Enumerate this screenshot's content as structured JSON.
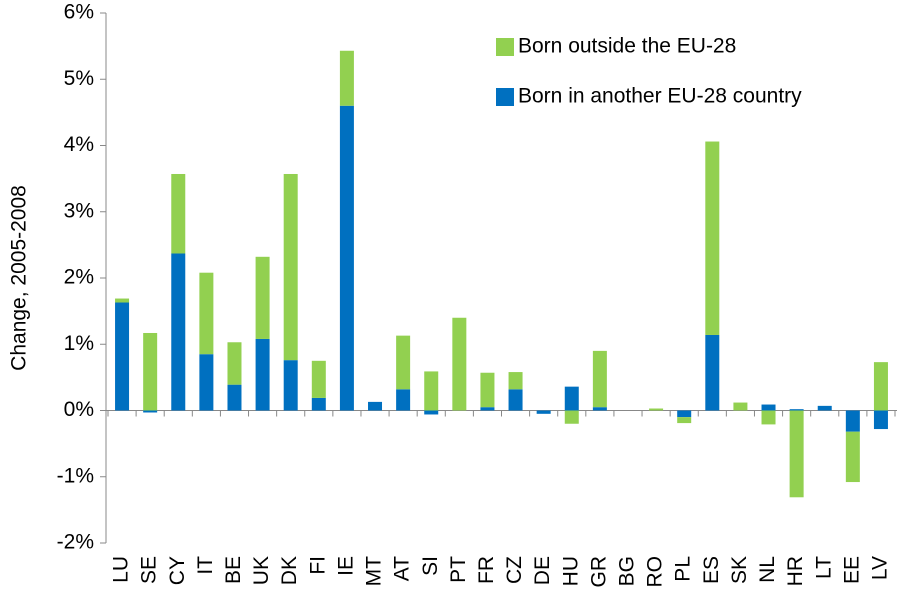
{
  "chart_data": {
    "type": "bar",
    "y_label": "Change, 2005-2008",
    "categories": [
      "LU",
      "SE",
      "CY",
      "IT",
      "BE",
      "UK",
      "DK",
      "FI",
      "IE",
      "MT",
      "AT",
      "SI",
      "PT",
      "FR",
      "CZ",
      "DE",
      "HU",
      "GR",
      "BG",
      "RO",
      "PL",
      "ES",
      "SK",
      "NL",
      "HR",
      "LT",
      "EE",
      "LV"
    ],
    "series": [
      {
        "name": "Born outside the EU-28",
        "color": "#92d050",
        "values": [
          0.06,
          1.17,
          1.2,
          1.23,
          0.64,
          1.24,
          2.81,
          0.56,
          0.83,
          0,
          0.81,
          0.59,
          1.4,
          0.52,
          0.26,
          0,
          -0.2,
          0.85,
          0,
          0.03,
          -0.09,
          2.92,
          0.12,
          -0.21,
          -1.31,
          0,
          -0.76,
          0.73
        ]
      },
      {
        "name": "Born in another EU-28 country",
        "color": "#0070c0",
        "values": [
          1.63,
          -0.03,
          2.37,
          0.85,
          0.39,
          1.08,
          0.76,
          0.19,
          4.6,
          0.13,
          0.32,
          -0.06,
          0,
          0.05,
          0.32,
          -0.05,
          0.36,
          0.05,
          0,
          0,
          -0.1,
          1.14,
          0,
          0.09,
          0.02,
          0.07,
          -0.32,
          -0.28
        ]
      }
    ],
    "ylim": [
      -2,
      6
    ],
    "yticks": [
      {
        "value": -2,
        "label": "-2%"
      },
      {
        "value": -1,
        "label": "-1%"
      },
      {
        "value": 0,
        "label": "0%"
      },
      {
        "value": 1,
        "label": "1%"
      },
      {
        "value": 2,
        "label": "2%"
      },
      {
        "value": 3,
        "label": "3%"
      },
      {
        "value": 4,
        "label": "4%"
      },
      {
        "value": 5,
        "label": "5%"
      },
      {
        "value": 6,
        "label": "6%"
      }
    ],
    "legend": "top-right"
  }
}
